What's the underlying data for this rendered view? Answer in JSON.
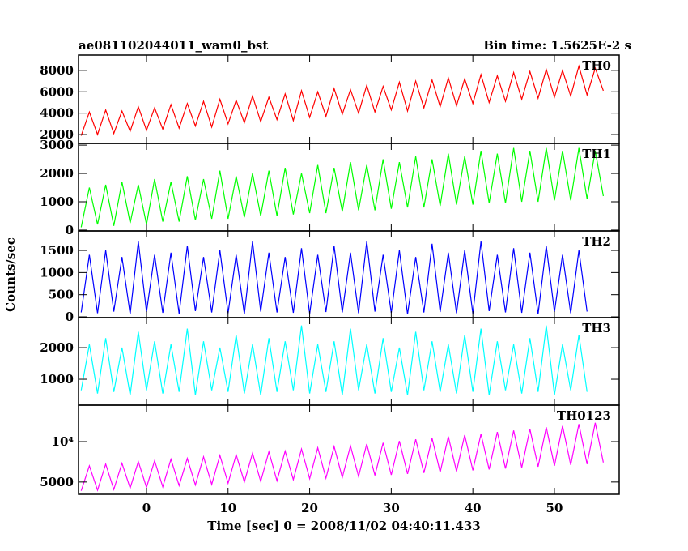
{
  "chart_data": {
    "type": "line",
    "title": "ae081102044011_wam0_bst",
    "subtitle": "Bin time: 1.5625E-2 s",
    "xlabel": "Time [sec] 0 = 2008/11/02 04:40:11.433",
    "ylabel": "Counts/sec",
    "xlim": [
      -8.33,
      57.94
    ],
    "xticks": [
      0,
      10,
      20,
      30,
      40,
      50
    ],
    "x": [
      -8,
      -7,
      -6,
      -5,
      -4,
      -3,
      -2,
      -1,
      0,
      1,
      2,
      3,
      4,
      5,
      6,
      7,
      8,
      9,
      10,
      11,
      12,
      13,
      14,
      15,
      16,
      17,
      18,
      19,
      20,
      21,
      22,
      23,
      24,
      25,
      26,
      27,
      28,
      29,
      30,
      31,
      32,
      33,
      34,
      35,
      36,
      37,
      38,
      39,
      40,
      41,
      42,
      43,
      44,
      45,
      46,
      47,
      48,
      49,
      50,
      51,
      52,
      53,
      54,
      55,
      56
    ],
    "panels": [
      {
        "name": "TH0",
        "color": "#ff0000",
        "log": false,
        "ylim": [
          1170,
          9430
        ],
        "yticks": [
          2000,
          4000,
          6000,
          8000
        ],
        "values": [
          1900,
          4100,
          2000,
          4300,
          2100,
          4200,
          2300,
          4600,
          2400,
          4500,
          2500,
          4800,
          2600,
          4900,
          2800,
          5100,
          2700,
          5300,
          3000,
          5200,
          3100,
          5600,
          3200,
          5500,
          3400,
          5800,
          3300,
          6100,
          3600,
          6000,
          3700,
          6300,
          3900,
          6200,
          4000,
          6600,
          4100,
          6500,
          4300,
          6900,
          4200,
          7000,
          4500,
          7100,
          4600,
          7300,
          4700,
          7200,
          4900,
          7600,
          5000,
          7500,
          5100,
          7800,
          5300,
          7900,
          5400,
          8100,
          5500,
          8000,
          5600,
          8400,
          5700,
          8200,
          6100
        ]
      },
      {
        "name": "TH1",
        "color": "#00ff00",
        "log": false,
        "ylim": [
          -30,
          3060
        ],
        "yticks": [
          0,
          1000,
          2000,
          3000
        ],
        "values": [
          100,
          1500,
          200,
          1600,
          150,
          1700,
          250,
          1600,
          200,
          1800,
          300,
          1700,
          300,
          1900,
          350,
          1800,
          400,
          2100,
          400,
          1900,
          450,
          2000,
          500,
          2100,
          500,
          2200,
          550,
          2000,
          600,
          2300,
          600,
          2200,
          650,
          2400,
          700,
          2300,
          700,
          2500,
          750,
          2400,
          800,
          2600,
          800,
          2500,
          850,
          2700,
          900,
          2600,
          900,
          2800,
          950,
          2700,
          950,
          2900,
          1000,
          2800,
          1000,
          2900,
          1050,
          2800,
          1050,
          2900,
          1100,
          2800,
          1200
        ]
      },
      {
        "name": "TH2",
        "color": "#0000ff",
        "log": false,
        "ylim": [
          -18,
          1940
        ],
        "yticks": [
          0,
          500,
          1000,
          1500
        ],
        "values": [
          100,
          1400,
          80,
          1500,
          120,
          1350,
          60,
          1700,
          110,
          1400,
          90,
          1450,
          70,
          1600,
          130,
          1350,
          100,
          1500,
          80,
          1400,
          60,
          1700,
          120,
          1450,
          100,
          1350,
          90,
          1550,
          70,
          1400,
          110,
          1600,
          100,
          1450,
          80,
          1700,
          120,
          1400,
          90,
          1500,
          60,
          1350,
          100,
          1650,
          110,
          1450,
          80,
          1500,
          70,
          1700,
          130,
          1400,
          100,
          1550,
          90,
          1450,
          60,
          1600,
          110,
          1400,
          80,
          1500,
          120
        ]
      },
      {
        "name": "TH3",
        "color": "#00ffff",
        "log": false,
        "ylim": [
          180,
          2950
        ],
        "yticks": [
          1000,
          2000
        ],
        "values": [
          650,
          2100,
          550,
          2300,
          600,
          2000,
          500,
          2500,
          650,
          2200,
          550,
          2100,
          600,
          2600,
          500,
          2200,
          650,
          2000,
          600,
          2400,
          550,
          2100,
          500,
          2300,
          600,
          2200,
          650,
          2700,
          550,
          2100,
          600,
          2200,
          500,
          2600,
          650,
          2100,
          550,
          2300,
          600,
          2000,
          500,
          2500,
          650,
          2200,
          600,
          2100,
          550,
          2400,
          600,
          2600,
          500,
          2200,
          650,
          2100,
          550,
          2300,
          600,
          2700,
          500,
          2100,
          650,
          2400,
          600
        ]
      },
      {
        "name": "TH0123",
        "color": "#ff00ff",
        "log": true,
        "ylim": [
          4050,
          18700
        ],
        "yticks": [
          5000,
          {
            "value": 10000,
            "label": "10⁴"
          }
        ],
        "values": [
          4300,
          6600,
          4350,
          6800,
          4400,
          6900,
          4500,
          7100,
          4550,
          7200,
          4600,
          7400,
          4700,
          7500,
          4750,
          7700,
          4800,
          7900,
          4900,
          8000,
          5000,
          8200,
          5050,
          8400,
          5100,
          8500,
          5200,
          8800,
          5300,
          9000,
          5350,
          9200,
          5400,
          9300,
          5500,
          9600,
          5600,
          9800,
          5650,
          10100,
          5750,
          10400,
          5850,
          10600,
          5900,
          10900,
          6000,
          11200,
          6100,
          11400,
          6200,
          11800,
          6300,
          12100,
          6400,
          12400,
          6500,
          12800,
          6600,
          13100,
          6700,
          13500,
          6800,
          13800,
          7000
        ]
      }
    ]
  }
}
